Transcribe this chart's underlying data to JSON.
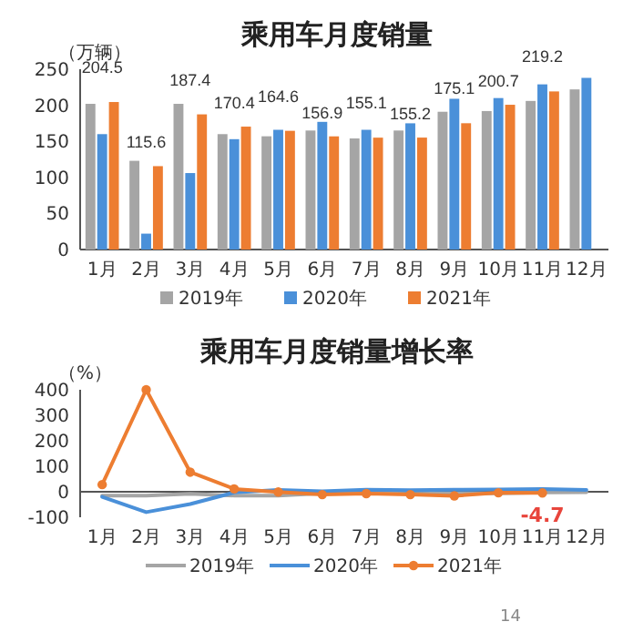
{
  "chart_data": [
    {
      "type": "bar",
      "title": "乘用车月度销量",
      "ylabel": "（万辆）",
      "categories": [
        "1月",
        "2月",
        "3月",
        "4月",
        "5月",
        "6月",
        "7月",
        "8月",
        "9月",
        "10月",
        "11月",
        "12月"
      ],
      "series": [
        {
          "name": "2019年",
          "color": "#a5a5a5",
          "values": [
            202,
            123,
            202,
            160,
            157,
            165,
            154,
            165,
            191,
            192,
            206,
            222
          ]
        },
        {
          "name": "2020年",
          "color": "#4a90d9",
          "values": [
            160,
            22,
            106,
            153,
            166,
            177,
            166,
            175,
            209,
            210,
            229,
            238
          ]
        },
        {
          "name": "2021年",
          "color": "#ed7d31",
          "values": [
            204.5,
            115.6,
            187.4,
            170.4,
            164.6,
            156.9,
            155.1,
            155.2,
            175.1,
            200.7,
            219.2,
            null
          ],
          "value_labels": [
            "204.5",
            "115.6",
            "187.4",
            "170.4",
            "164.6",
            "156.9",
            "155.1",
            "155.2",
            "175.1",
            "200.7",
            "219.2",
            null
          ]
        }
      ],
      "ylim": [
        0,
        250
      ],
      "yticks": [
        0,
        50,
        100,
        150,
        200,
        250
      ],
      "grid": false,
      "legend": "bottom"
    },
    {
      "type": "line",
      "title": "乘用车月度销量增长率",
      "ylabel": "（%）",
      "categories": [
        "1月",
        "2月",
        "3月",
        "4月",
        "5月",
        "6月",
        "7月",
        "8月",
        "9月",
        "10月",
        "11月",
        "12月"
      ],
      "series": [
        {
          "name": "2019年",
          "color": "#a5a5a5",
          "marker": "none",
          "values": [
            -15,
            -15,
            -8,
            -15,
            -15,
            -6,
            -5,
            -8,
            -6,
            -6,
            -3,
            -2
          ]
        },
        {
          "name": "2020年",
          "color": "#4a90d9",
          "marker": "none",
          "values": [
            -20,
            -80,
            -48,
            -3,
            7,
            2,
            8,
            6,
            8,
            9,
            11,
            7
          ]
        },
        {
          "name": "2021年",
          "color": "#ed7d31",
          "marker": "circle",
          "values": [
            28,
            400,
            77,
            11,
            -1,
            -11,
            -7,
            -11,
            -16,
            -4,
            -4.7,
            null
          ]
        }
      ],
      "ylim": [
        -100,
        400
      ],
      "yticks": [
        -100,
        0,
        100,
        200,
        300,
        400
      ],
      "grid": false,
      "legend": "bottom",
      "annotations": [
        {
          "text": "-4.7",
          "x": "11月",
          "y": -4.7
        },
        "14"
      ]
    }
  ]
}
